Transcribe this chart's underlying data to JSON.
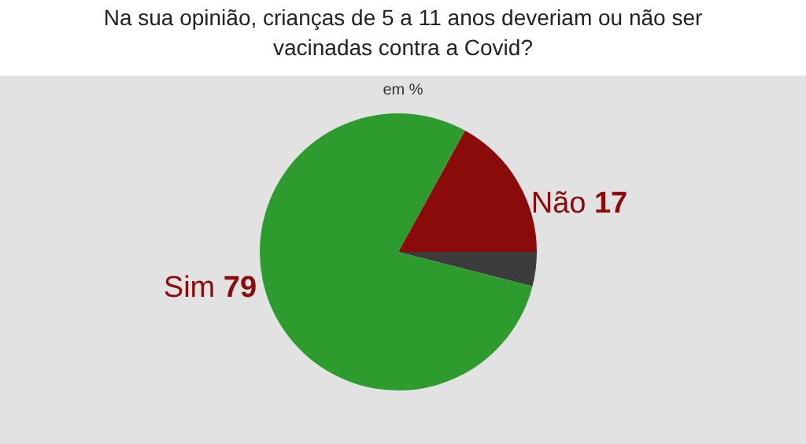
{
  "chart_data": {
    "type": "pie",
    "title": "Na sua opinião, crianças de 5 a 11 anos deveriam ou não ser vacinadas contra a Covid?",
    "subtitle": "em %",
    "categories": [
      "Não",
      null,
      "Sim"
    ],
    "values": [
      17,
      4,
      79
    ],
    "colors": [
      "#8b0a0a",
      "#3c3c3c",
      "#2e9b2e"
    ],
    "value_labels": [
      "17",
      null,
      "79"
    ]
  }
}
